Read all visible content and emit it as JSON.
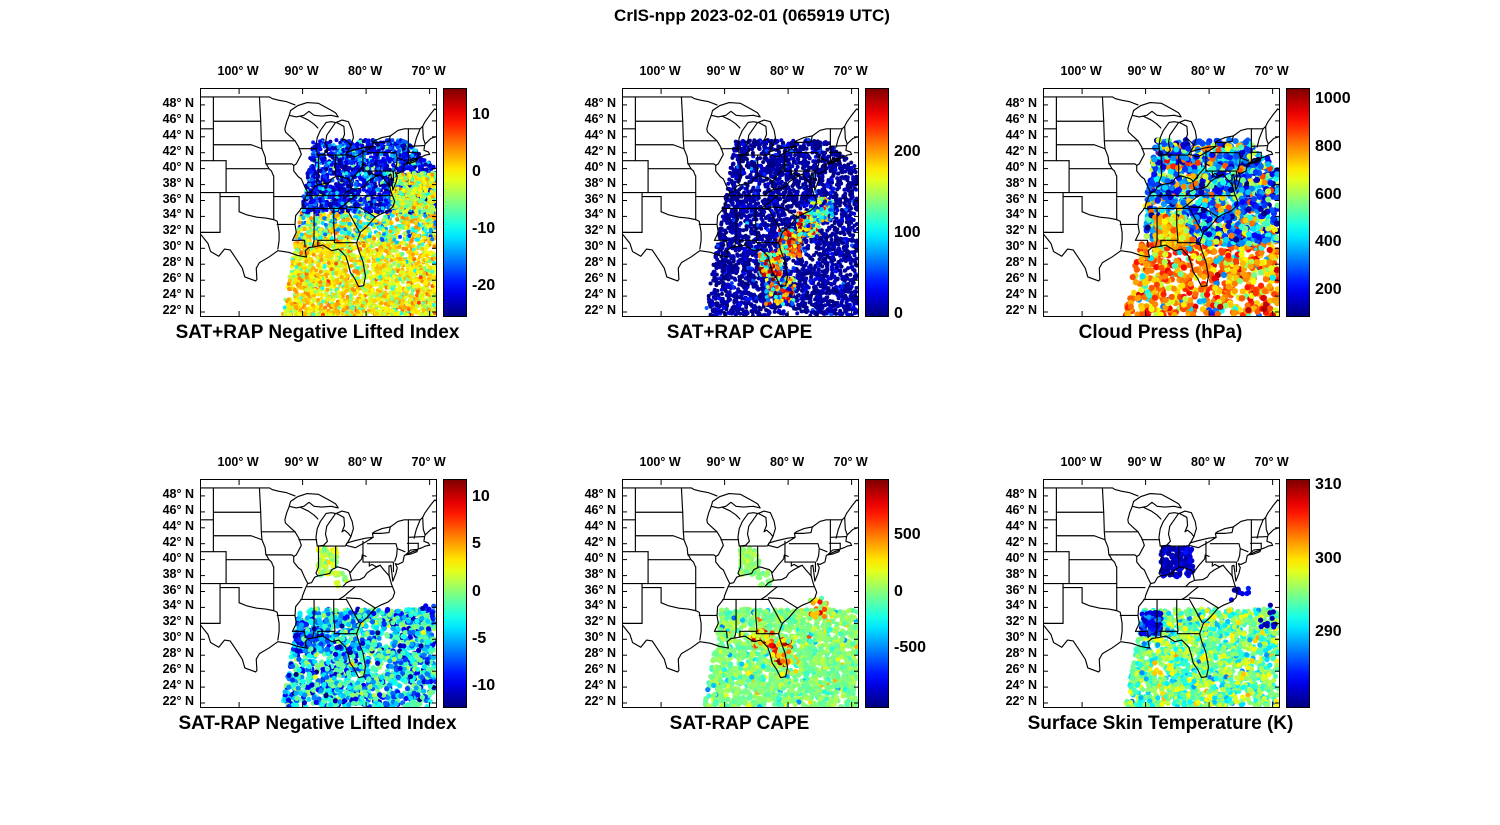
{
  "chart_data": {
    "type": "scatter",
    "figure_title": "CrIS-npp 2023-02-01 (065919 UTC)",
    "background_color": "#ffffff",
    "line_color": "#000000",
    "colormap": "jet",
    "projection": {
      "lon_range": [
        -106,
        -69
      ],
      "lat_range": [
        21.5,
        50
      ]
    },
    "x_axis": {
      "ticks": [
        -100,
        -90,
        -80,
        -70
      ],
      "labels": [
        "100° W",
        "90° W",
        "80° W",
        "70° W"
      ]
    },
    "y_axis": {
      "ticks": [
        48,
        46,
        44,
        42,
        40,
        38,
        36,
        34,
        32,
        30,
        28,
        26,
        24,
        22
      ],
      "labels": [
        "48° N",
        "46° N",
        "44° N",
        "42° N",
        "40° N",
        "38° N",
        "36° N",
        "34° N",
        "32° N",
        "30° N",
        "28° N",
        "26° N",
        "24° N",
        "22° N"
      ]
    },
    "swath_polygon": [
      [
        -93.2,
        21.5
      ],
      [
        -69,
        21.5
      ],
      [
        -69,
        40
      ],
      [
        -74,
        43.6
      ],
      [
        -88.3,
        43.6
      ]
    ],
    "panels": [
      {
        "title": "SAT+RAP Negative Lifted Index",
        "row": 0,
        "col": 0,
        "dot_radius": 2.0,
        "seed": 101,
        "colorbar": {
          "min": -25,
          "max": 15,
          "ticks": [
            10,
            0,
            -10,
            -20
          ]
        },
        "clusters": [
          {
            "lon": [
              -94,
              -69
            ],
            "lat": [
              21.5,
              31
            ],
            "n": 2200,
            "mix": [
              [
                0.5,
                0,
                2
              ],
              [
                0.3,
                3,
                2
              ],
              [
                0.2,
                -5,
                3
              ]
            ],
            "clip": true
          },
          {
            "lon": [
              -94,
              -69
            ],
            "lat": [
              31,
              34.5
            ],
            "n": 800,
            "mix": [
              [
                0.35,
                2,
                2
              ],
              [
                0.35,
                -5,
                3
              ],
              [
                0.3,
                -13,
                3
              ]
            ],
            "clip": true
          },
          {
            "lon": [
              -90,
              -69
            ],
            "lat": [
              34.5,
              43.6
            ],
            "n": 2000,
            "mix": [
              [
                0.7,
                -21,
                2.5
              ],
              [
                0.25,
                -14,
                3
              ],
              [
                0.05,
                -5,
                2
              ]
            ],
            "clip": true
          },
          {
            "lon": [
              -76,
              -69
            ],
            "lat": [
              34.5,
              39.5
            ],
            "n": 400,
            "mix": [
              [
                0.55,
                0,
                2
              ],
              [
                0.45,
                -5,
                2
              ]
            ],
            "clip": true
          }
        ]
      },
      {
        "title": "SAT+RAP CAPE",
        "row": 0,
        "col": 1,
        "dot_radius": 2.0,
        "seed": 202,
        "colorbar": {
          "min": 0,
          "max": 280,
          "ticks": [
            200,
            100,
            0
          ]
        },
        "clusters": [
          {
            "lon": [
              -94,
              -69
            ],
            "lat": [
              21.5,
              43.6
            ],
            "n": 3800,
            "mix": [
              [
                0.85,
                8,
                7
              ],
              [
                0.15,
                28,
                18
              ]
            ],
            "clip": true
          },
          {
            "lon": [
              -84.5,
              -81
            ],
            "lat": [
              26.5,
              29.5
            ],
            "n": 170,
            "mix": [
              [
                0.5,
                130,
                60
              ],
              [
                0.5,
                230,
                40
              ]
            ],
            "clip": true
          },
          {
            "lon": [
              -81.5,
              -78
            ],
            "lat": [
              29,
              32.3
            ],
            "n": 200,
            "mix": [
              [
                0.5,
                140,
                60
              ],
              [
                0.5,
                230,
                40
              ]
            ],
            "clip": true
          },
          {
            "lon": [
              -78.5,
              -75
            ],
            "lat": [
              31.5,
              34.5
            ],
            "n": 170,
            "mix": [
              [
                0.55,
                120,
                50
              ],
              [
                0.45,
                210,
                45
              ]
            ],
            "clip": true
          },
          {
            "lon": [
              -76.5,
              -73
            ],
            "lat": [
              33.5,
              36.3
            ],
            "n": 120,
            "mix": [
              [
                0.7,
                90,
                40
              ],
              [
                0.3,
                180,
                45
              ]
            ],
            "clip": true
          },
          {
            "lon": [
              -83.5,
              -79
            ],
            "lat": [
              23,
              26.3
            ],
            "n": 130,
            "mix": [
              [
                0.55,
                70,
                40
              ],
              [
                0.45,
                210,
                50
              ]
            ],
            "clip": true
          }
        ]
      },
      {
        "title": "Cloud Press (hPa)",
        "row": 0,
        "col": 2,
        "dot_radius": 3.1,
        "seed": 303,
        "colorbar": {
          "min": 100,
          "max": 1050,
          "ticks": [
            1000,
            800,
            600,
            400,
            200
          ]
        },
        "clusters": [
          {
            "lon": [
              -94,
              -69
            ],
            "lat": [
              21.5,
              30.5
            ],
            "n": 750,
            "mix": [
              [
                0.75,
                830,
                70
              ],
              [
                0.18,
                650,
                70
              ],
              [
                0.07,
                420,
                120
              ]
            ],
            "clip": true
          },
          {
            "lon": [
              -90,
              -69
            ],
            "lat": [
              30.5,
              43.6
            ],
            "n": 1500,
            "mix": [
              [
                0.45,
                250,
                90
              ],
              [
                0.25,
                420,
                100
              ],
              [
                0.15,
                600,
                100
              ],
              [
                0.15,
                800,
                80
              ]
            ],
            "clip": true
          },
          {
            "lon": [
              -88.5,
              -83.5
            ],
            "lat": [
              30.5,
              34
            ],
            "n": 230,
            "mix": [
              [
                0.75,
                790,
                60
              ],
              [
                0.25,
                620,
                70
              ]
            ],
            "clip": true
          }
        ]
      },
      {
        "title": "SAT-RAP Negative Lifted Index",
        "row": 1,
        "col": 0,
        "dot_radius": 2.6,
        "seed": 404,
        "colorbar": {
          "min": -12,
          "max": 12,
          "ticks": [
            10,
            5,
            0,
            -5,
            -10
          ]
        },
        "clusters": [
          {
            "lon": [
              -87.6,
              -84.6
            ],
            "lat": [
              38,
              41.4
            ],
            "n": 70,
            "mix": [
              [
                0.65,
                1,
                1.2
              ],
              [
                0.35,
                2.5,
                1
              ]
            ],
            "clip": false
          },
          {
            "lon": [
              -94,
              -69
            ],
            "lat": [
              21.5,
              33.8
            ],
            "n": 1800,
            "mix": [
              [
                0.42,
                -1,
                1.5
              ],
              [
                0.26,
                -4,
                2
              ],
              [
                0.2,
                -7,
                2
              ],
              [
                0.12,
                -10,
                1.2
              ]
            ],
            "clip": true
          },
          {
            "lon": [
              -91.5,
              -86
            ],
            "lat": [
              28.5,
              32.3
            ],
            "n": 170,
            "mix": [
              [
                0.55,
                -8,
                2
              ],
              [
                0.45,
                -4,
                2
              ]
            ],
            "clip": true
          },
          {
            "lon": [
              -71.5,
              -69.3
            ],
            "lat": [
              32.8,
              34.4
            ],
            "n": 9,
            "mix": [
              [
                1,
                -9,
                1.5
              ]
            ],
            "clip": false
          },
          {
            "lon": [
              -85,
              -82.5
            ],
            "lat": [
              36.5,
              38.5
            ],
            "n": 14,
            "mix": [
              [
                1,
                1,
                1.2
              ]
            ],
            "clip": false
          }
        ]
      },
      {
        "title": "SAT-RAP CAPE",
        "row": 1,
        "col": 1,
        "dot_radius": 2.6,
        "seed": 505,
        "colorbar": {
          "min": -1000,
          "max": 1000,
          "ticks": [
            500,
            0,
            -500
          ]
        },
        "clusters": [
          {
            "lon": [
              -87.6,
              -84.6
            ],
            "lat": [
              38,
              41.4
            ],
            "n": 70,
            "mix": [
              [
                1,
                30,
                60
              ]
            ],
            "clip": false
          },
          {
            "lon": [
              -94,
              -69
            ],
            "lat": [
              21.5,
              33.8
            ],
            "n": 1800,
            "mix": [
              [
                0.9,
                0,
                70
              ],
              [
                0.06,
                260,
                160
              ],
              [
                0.04,
                -260,
                160
              ]
            ],
            "clip": true
          },
          {
            "lon": [
              -82.5,
              -79.5
            ],
            "lat": [
              26.8,
              30
            ],
            "n": 60,
            "mix": [
              [
                0.5,
                620,
                260
              ],
              [
                0.5,
                120,
                120
              ]
            ],
            "clip": true
          },
          {
            "lon": [
              -85.5,
              -82.5
            ],
            "lat": [
              29,
              31.2
            ],
            "n": 40,
            "mix": [
              [
                0.5,
                520,
                240
              ],
              [
                0.5,
                80,
                100
              ]
            ],
            "clip": true
          },
          {
            "lon": [
              -76.5,
              -74
            ],
            "lat": [
              32.8,
              35.2
            ],
            "n": 26,
            "mix": [
              [
                0.55,
                420,
                220
              ],
              [
                0.45,
                60,
                100
              ]
            ],
            "clip": true
          },
          {
            "lon": [
              -85,
              -82.5
            ],
            "lat": [
              36.5,
              38.5
            ],
            "n": 14,
            "mix": [
              [
                1,
                30,
                60
              ]
            ],
            "clip": false
          }
        ]
      },
      {
        "title": "Surface Skin Temperature (K)",
        "row": 1,
        "col": 2,
        "dot_radius": 2.6,
        "seed": 606,
        "colorbar": {
          "min": 280,
          "max": 311,
          "ticks": [
            310,
            300,
            290
          ]
        },
        "clusters": [
          {
            "lon": [
              -94,
              -69
            ],
            "lat": [
              21.5,
              33.8
            ],
            "n": 1800,
            "mix": [
              [
                0.4,
                296,
                1.5
              ],
              [
                0.3,
                293,
                1.5
              ],
              [
                0.2,
                298.5,
                1.5
              ],
              [
                0.1,
                290,
                1.5
              ]
            ],
            "clip": true
          },
          {
            "lon": [
              -87.6,
              -82.4
            ],
            "lat": [
              37.8,
              41.6
            ],
            "n": 140,
            "mix": [
              [
                0.8,
                282,
                0.8
              ],
              [
                0.2,
                283.5,
                1
              ]
            ],
            "clip": false
          },
          {
            "lon": [
              -90.8,
              -87.6
            ],
            "lat": [
              30.6,
              33.4
            ],
            "n": 100,
            "mix": [
              [
                0.7,
                283,
                1.2
              ],
              [
                0.3,
                287,
                1.5
              ]
            ],
            "clip": true
          },
          {
            "lon": [
              -72,
              -69.3
            ],
            "lat": [
              31.5,
              34.6
            ],
            "n": 12,
            "mix": [
              [
                1,
                282,
                1
              ]
            ],
            "clip": false
          },
          {
            "lon": [
              -76.5,
              -73.5
            ],
            "lat": [
              34.4,
              36.6
            ],
            "n": 10,
            "mix": [
              [
                1,
                283,
                1
              ]
            ],
            "clip": true
          }
        ]
      }
    ]
  }
}
